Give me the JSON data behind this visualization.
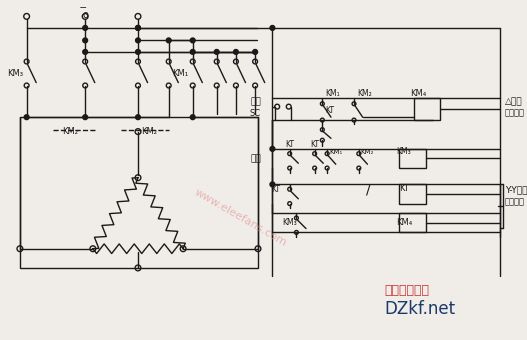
{
  "bg_color": "#f0ede8",
  "lc": "#1a1a1a",
  "lw": 1.0,
  "watermark": "www.eleefans.com",
  "wm_color": "#e09090",
  "brand1": "电子开发社区",
  "brand2": "DZkf.net",
  "brand1_color": "#cc3333",
  "brand2_color": "#1a3a6a"
}
